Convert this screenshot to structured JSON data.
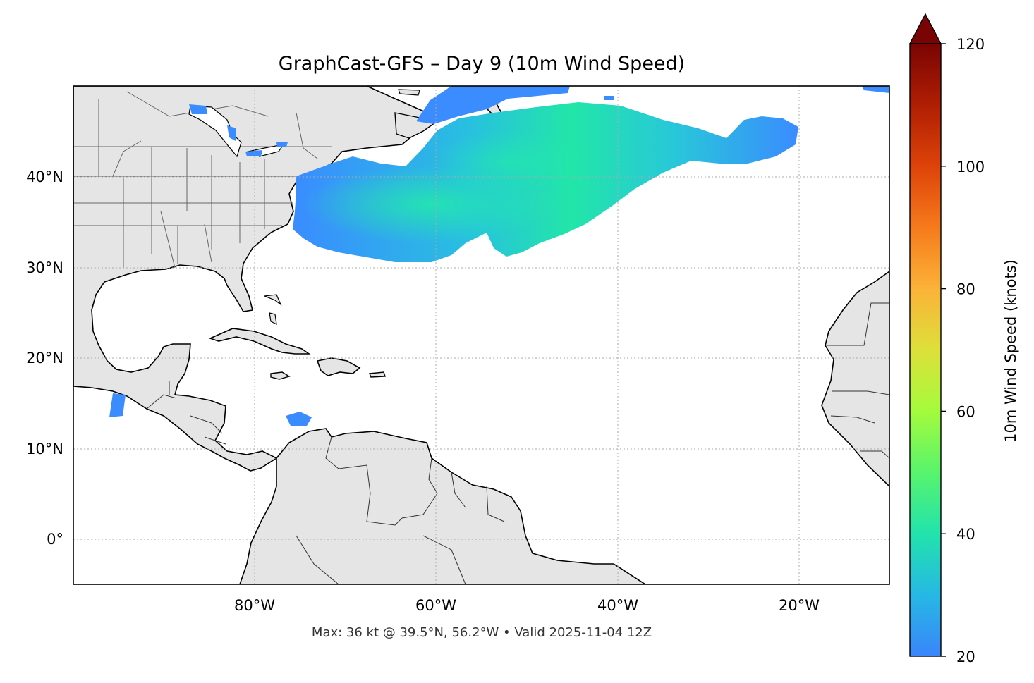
{
  "title": "GraphCast-GFS – Day 9 (10m Wind Speed)",
  "footer": "Max: 36 kt @ 39.5°N, 56.2°W • Valid 2025-11-04 12Z",
  "map": {
    "lon_range": [
      -100,
      -10
    ],
    "lat_range": [
      -5,
      50
    ],
    "grid": true,
    "land_color": "#e5e5e5",
    "ocean_color": "#ffffff",
    "lon_ticks": [
      {
        "value": -80,
        "label": "80°W"
      },
      {
        "value": -60,
        "label": "60°W"
      },
      {
        "value": -40,
        "label": "40°W"
      },
      {
        "value": -20,
        "label": "20°W"
      }
    ],
    "lat_ticks": [
      {
        "value": 40,
        "label": "40°N"
      },
      {
        "value": 30,
        "label": "30°N"
      },
      {
        "value": 20,
        "label": "20°N"
      },
      {
        "value": 10,
        "label": "10°N"
      },
      {
        "value": 0,
        "label": "0°"
      }
    ]
  },
  "colorbar": {
    "label": "10m Wind Speed (knots)",
    "min": 20,
    "max": 120,
    "extend": "max",
    "ticks": [
      {
        "value": 20,
        "label": "20"
      },
      {
        "value": 40,
        "label": "40"
      },
      {
        "value": 60,
        "label": "60"
      },
      {
        "value": 80,
        "label": "80"
      },
      {
        "value": 100,
        "label": "100"
      },
      {
        "value": 120,
        "label": "120"
      }
    ],
    "colors": [
      "#3a85fb",
      "#26b8e4",
      "#22e3ac",
      "#58f46c",
      "#a4fb3c",
      "#dde03a",
      "#fbb238",
      "#f67a1c",
      "#dd4309",
      "#b01e03",
      "#7a0403"
    ]
  },
  "chart_data": {
    "type": "heatmap",
    "title": "GraphCast-GFS – Day 9 (10m Wind Speed)",
    "variable": "10m Wind Speed (knots)",
    "max_value": 36,
    "max_lat": 39.5,
    "max_lon": -56.2,
    "valid_time": "2025-11-04 12Z"
  }
}
